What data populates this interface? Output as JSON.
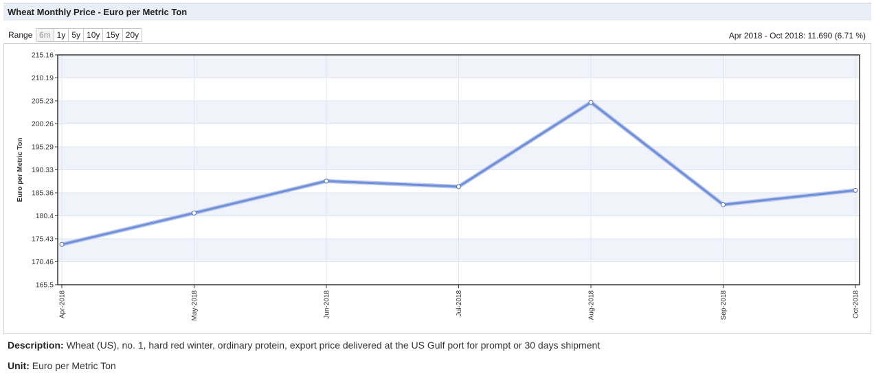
{
  "header": {
    "title": "Wheat Monthly Price - Euro per Metric Ton"
  },
  "range": {
    "label": "Range",
    "buttons": [
      "6m",
      "1y",
      "5y",
      "10y",
      "15y",
      "20y"
    ],
    "active": "6m"
  },
  "summary": "Apr 2018 - Oct 2018: 11.690 (6.71 %)",
  "colors": {
    "line": "#6f8fd8",
    "band": "#f1f3fa",
    "grid": "#dfe4ef",
    "axis": "#333333"
  },
  "chart_data": {
    "type": "line",
    "title": "",
    "xlabel": "",
    "ylabel": "Euro per Metric Ton",
    "categories": [
      "Apr-2018",
      "May-2018",
      "Jun-2018",
      "Jul-2018",
      "Aug-2018",
      "Sep-2018",
      "Oct-2018"
    ],
    "series": [
      {
        "values": [
          174.2,
          181.0,
          187.9,
          186.7,
          204.9,
          182.8,
          185.9
        ]
      }
    ],
    "yticks": [
      "165.5",
      "170.46",
      "175.43",
      "180.4",
      "185.36",
      "190.33",
      "195.29",
      "200.26",
      "205.23",
      "210.19",
      "215.16"
    ],
    "ylim": [
      165.5,
      215.16
    ],
    "grid": true,
    "legend": "none"
  },
  "footer": {
    "description_label": "Description:",
    "description_text": "Wheat (US), no. 1, hard red winter, ordinary protein, export price delivered at the US Gulf port for prompt or 30 days shipment",
    "unit_label": "Unit:",
    "unit_text": "Euro per Metric Ton"
  }
}
